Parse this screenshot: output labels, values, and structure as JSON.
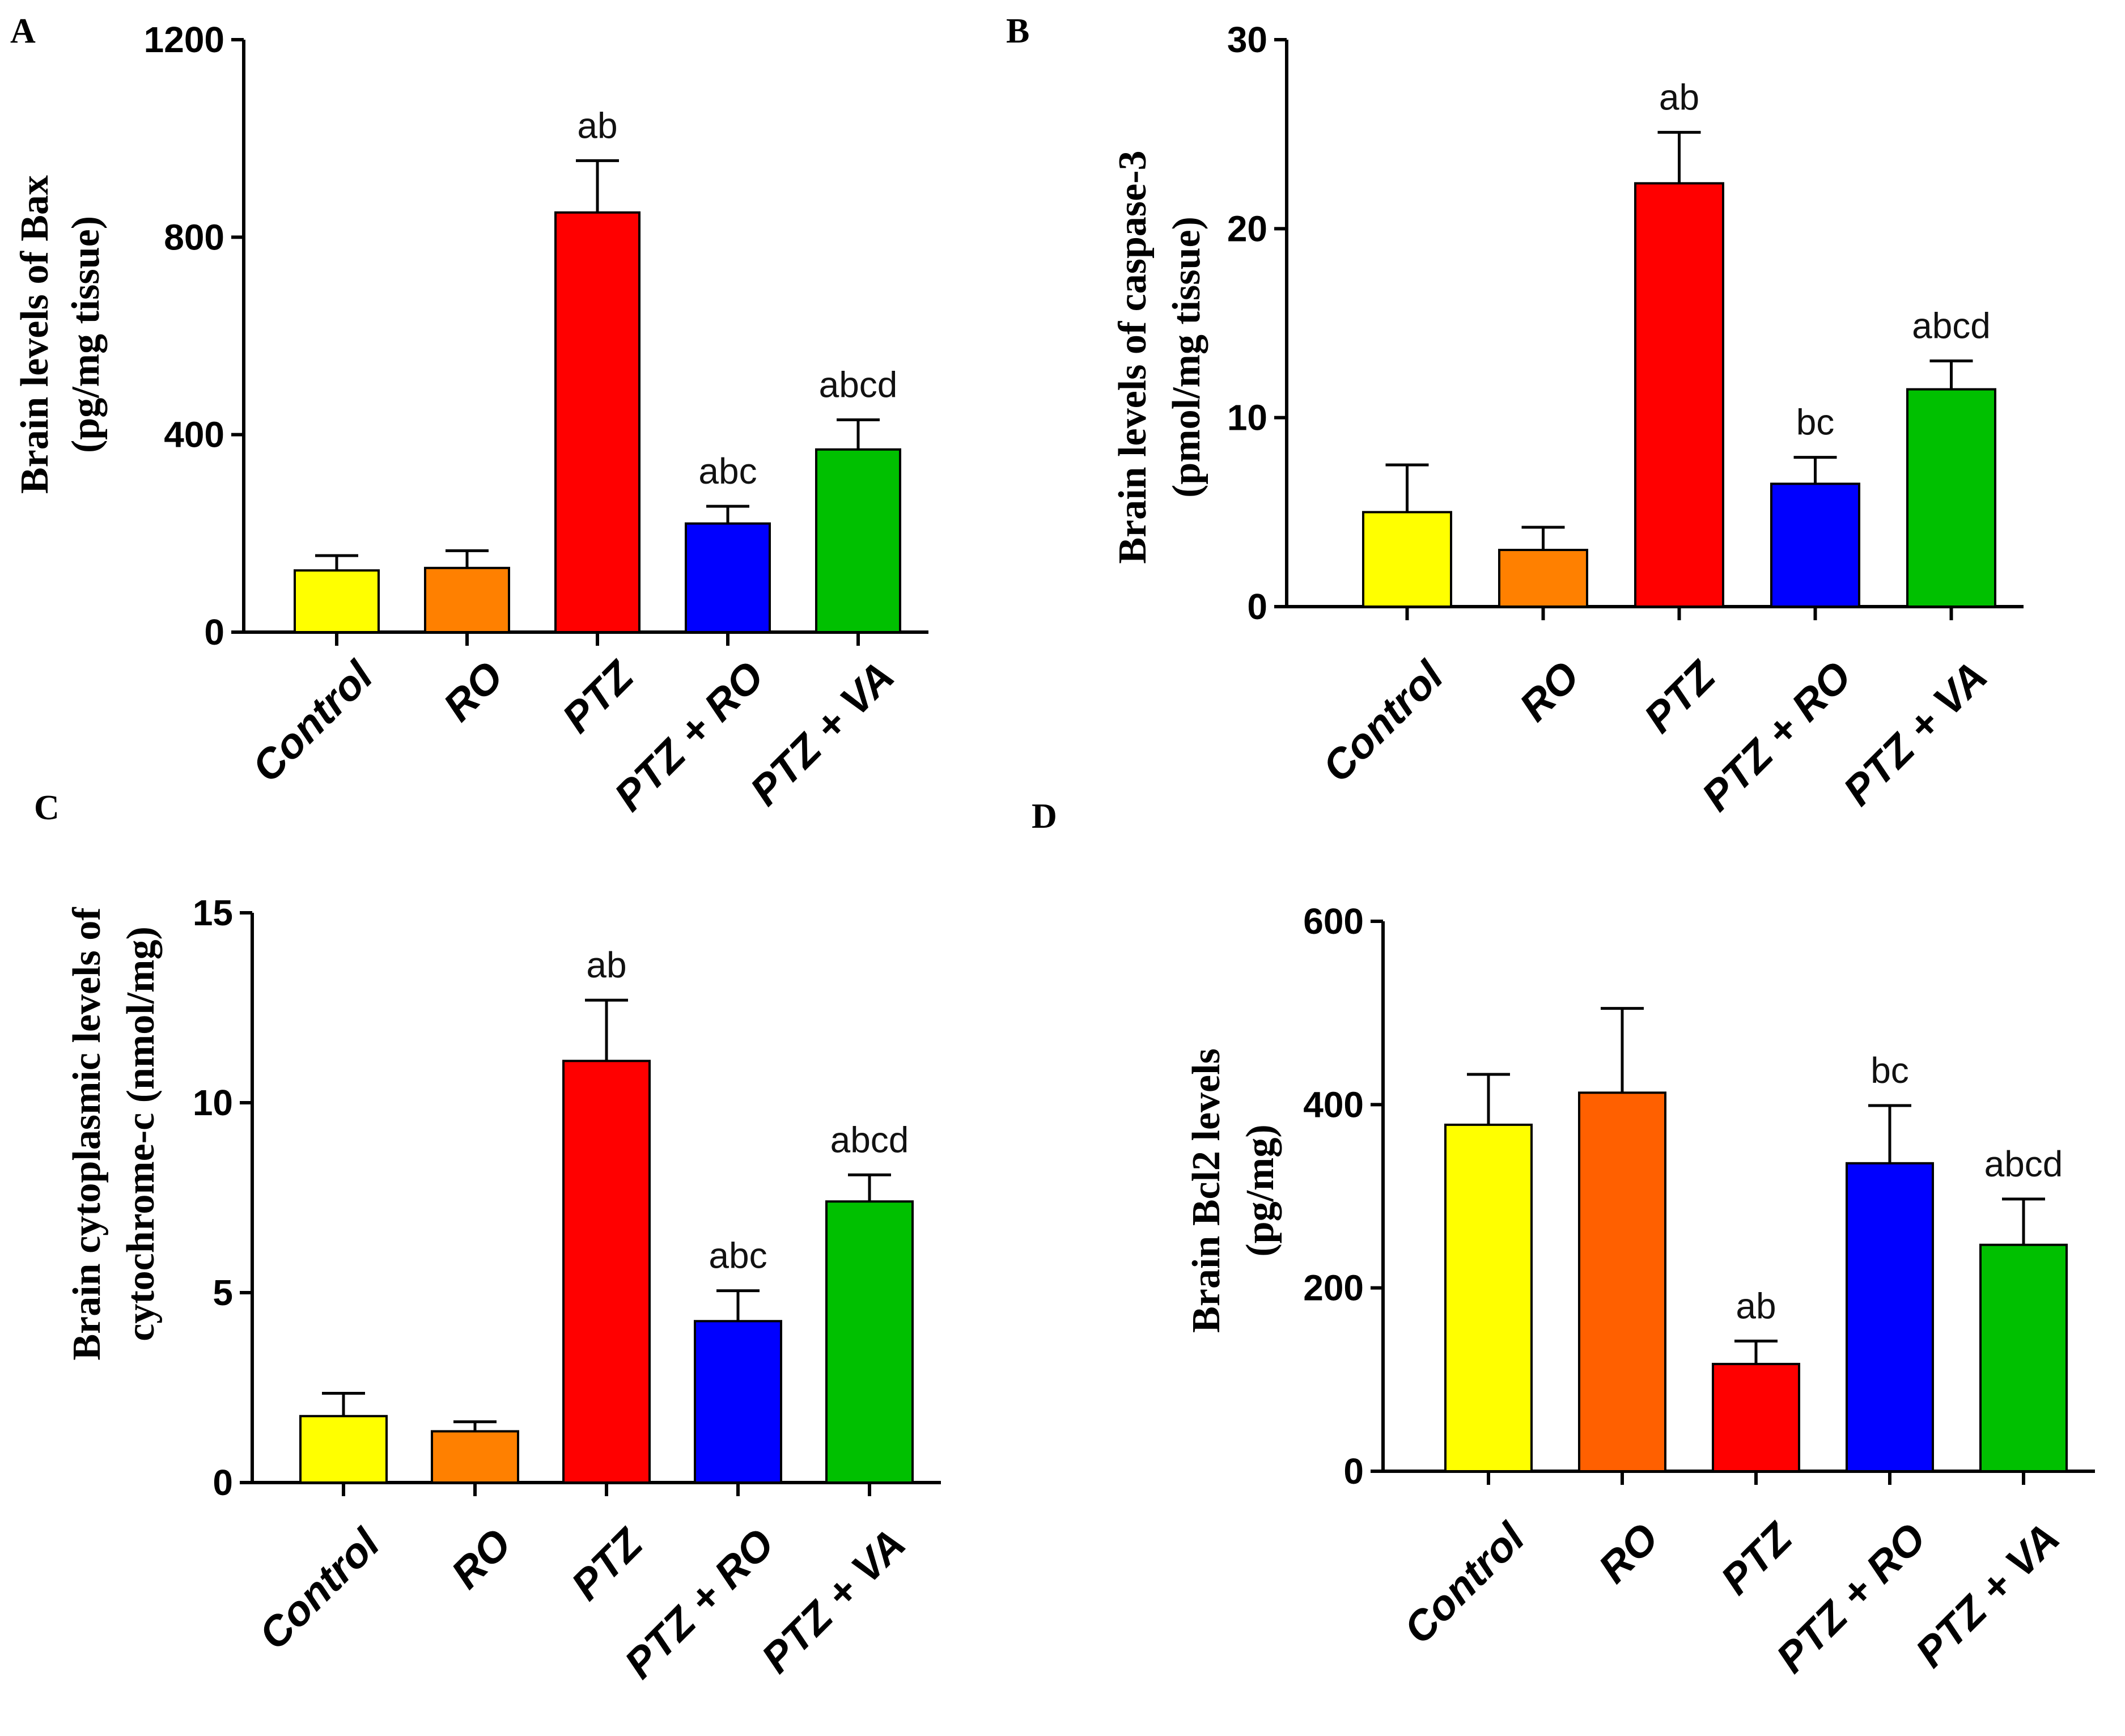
{
  "chart_data": [
    {
      "panel": "A",
      "type": "bar",
      "title": "",
      "ylabel_lines": [
        "Brain levels of Bax",
        "(pg/mg tissue)"
      ],
      "xlabel": "",
      "categories": [
        "Control",
        "RO",
        "PTZ",
        "PTZ + RO",
        "PTZ + VA"
      ],
      "values": [
        125,
        130,
        850,
        220,
        370
      ],
      "errors": [
        30,
        35,
        105,
        35,
        60
      ],
      "annotations": [
        "",
        "",
        "ab",
        "abc",
        "abcd"
      ],
      "colors": [
        "#ffff00",
        "#ff8000",
        "#ff0000",
        "#0000ff",
        "#00c000"
      ],
      "ylim": [
        0,
        1200
      ],
      "yticks": [
        0,
        400,
        800,
        1200
      ]
    },
    {
      "panel": "B",
      "type": "bar",
      "title": "",
      "ylabel_lines": [
        "Brain levels of caspase-3",
        "(pmol/mg tissue)"
      ],
      "xlabel": "",
      "categories": [
        "Control",
        "RO",
        "PTZ",
        "PTZ + RO",
        "PTZ + VA"
      ],
      "values": [
        5,
        3,
        22.4,
        6.5,
        11.5
      ],
      "errors": [
        2.5,
        1.2,
        2.7,
        1.4,
        1.5
      ],
      "annotations": [
        "",
        "",
        "ab",
        "bc",
        "abcd"
      ],
      "colors": [
        "#ffff00",
        "#ff8000",
        "#ff0000",
        "#0000ff",
        "#00c000"
      ],
      "ylim": [
        0,
        30
      ],
      "yticks": [
        0,
        10,
        20,
        30
      ]
    },
    {
      "panel": "C",
      "type": "bar",
      "title": "",
      "ylabel_lines": [
        "Brain cytoplasmic levels of",
        "cytochrome-c (nmol/mg)"
      ],
      "xlabel": "",
      "categories": [
        "Control",
        "RO",
        "PTZ",
        "PTZ + RO",
        "PTZ + VA"
      ],
      "values": [
        1.75,
        1.35,
        11.1,
        4.25,
        7.4
      ],
      "errors": [
        0.6,
        0.25,
        1.6,
        0.8,
        0.7
      ],
      "annotations": [
        "",
        "",
        "ab",
        "abc",
        "abcd"
      ],
      "colors": [
        "#ffff00",
        "#ff8000",
        "#ff0000",
        "#0000ff",
        "#00c000"
      ],
      "ylim": [
        0,
        15
      ],
      "yticks": [
        0,
        5,
        10,
        15
      ]
    },
    {
      "panel": "D",
      "type": "bar",
      "title": "",
      "ylabel_lines": [
        "Brain Bcl2 levels",
        "(pg/mg)"
      ],
      "xlabel": "",
      "categories": [
        "Control",
        "RO",
        "PTZ",
        "PTZ + RO",
        "PTZ + VA"
      ],
      "values": [
        378,
        413,
        117,
        336,
        247
      ],
      "errors": [
        55,
        92,
        25,
        63,
        50
      ],
      "annotations": [
        "",
        "",
        "ab",
        "bc",
        "abcd"
      ],
      "colors": [
        "#ffff00",
        "#ff6000",
        "#ff0000",
        "#0000ff",
        "#00c000"
      ],
      "ylim": [
        0,
        600
      ],
      "yticks": [
        0,
        200,
        400,
        600
      ]
    }
  ]
}
